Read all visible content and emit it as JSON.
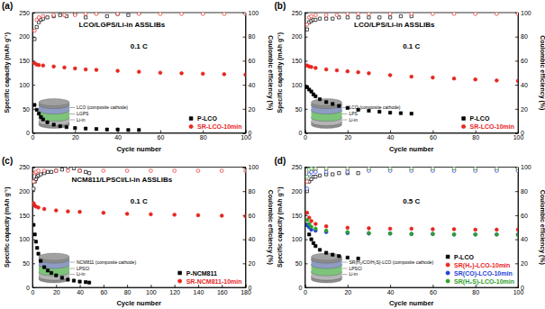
{
  "chart_data": [
    {
      "type": "scatter",
      "panel_label": "(a)",
      "title": "LCO/LGPS/Li-in ASSLIBs",
      "annotation": "0.1 C",
      "x_label": "Cycle number",
      "y_label": "Specific capacity (mAh g⁻¹)",
      "y2_label": "Coulombic efficiency (%)",
      "xlim": [
        0,
        100
      ],
      "xticks": [
        0,
        20,
        40,
        60,
        80,
        100
      ],
      "ylim": [
        0,
        250
      ],
      "yticks": [
        0,
        50,
        100,
        150,
        200,
        250
      ],
      "y2lim": [
        0,
        100
      ],
      "y2ticks": [
        0,
        20,
        40,
        60,
        80,
        100
      ],
      "legend": "bottom-right",
      "inset": {
        "labels": [
          "LCO (composite cathode)",
          "LGPS",
          "Li-in"
        ]
      },
      "series": [
        {
          "name": "P-LCO",
          "color": "#000000",
          "marker": "square",
          "x": [
            1,
            2,
            3,
            4,
            5,
            7,
            10,
            13,
            16,
            20,
            25,
            30,
            35,
            40,
            45,
            50
          ],
          "values": [
            58,
            48,
            40,
            33,
            28,
            22,
            17,
            14,
            12,
            10,
            9,
            8,
            7,
            7,
            6,
            6
          ]
        },
        {
          "name": "SR-LCO-10min",
          "color": "#e8251f",
          "marker": "circle",
          "x": [
            1,
            2,
            3,
            5,
            10,
            15,
            20,
            25,
            30,
            40,
            50,
            60,
            70,
            80,
            90,
            100
          ],
          "values": [
            145,
            142,
            141,
            140,
            138,
            136,
            134,
            132,
            131,
            129,
            127,
            125,
            124,
            123,
            122,
            121
          ]
        },
        {
          "color": "#000000",
          "marker": "square-open",
          "axis": "y2",
          "x": [
            1,
            2,
            3,
            4,
            5,
            7,
            10,
            13,
            16,
            20,
            25,
            30,
            35,
            40,
            45,
            50
          ],
          "values": [
            78,
            88,
            92,
            94,
            95,
            96,
            97,
            98,
            97,
            99,
            96,
            100,
            97,
            99,
            98,
            100
          ]
        },
        {
          "color": "#e8251f",
          "marker": "circle-open",
          "axis": "y2",
          "x": [
            1,
            2,
            3,
            5,
            10,
            15,
            20,
            25,
            30,
            40,
            50,
            60,
            70,
            80,
            90,
            100
          ],
          "values": [
            85,
            94,
            96,
            97,
            98,
            98,
            98,
            99,
            99,
            99,
            99,
            99,
            99,
            99,
            99,
            99
          ]
        }
      ]
    },
    {
      "type": "scatter",
      "panel_label": "(b)",
      "title": "LCO/LPS/Li-in ASSLIBs",
      "annotation": "0.1 C",
      "x_label": "Cycle number",
      "y_label": "Specific capacity (mAh g⁻¹)",
      "y2_label": "Coulombic efficiency (%)",
      "xlim": [
        0,
        100
      ],
      "xticks": [
        0,
        20,
        40,
        60,
        80,
        100
      ],
      "ylim": [
        0,
        250
      ],
      "yticks": [
        0,
        50,
        100,
        150,
        200,
        250
      ],
      "y2lim": [
        0,
        100
      ],
      "y2ticks": [
        0,
        20,
        40,
        60,
        80,
        100
      ],
      "legend": "bottom-right",
      "inset": {
        "labels": [
          "LCO (composite cathode)",
          "LPS",
          "Li-in"
        ]
      },
      "series": [
        {
          "name": "P-LCO",
          "color": "#000000",
          "marker": "square",
          "x": [
            1,
            2,
            3,
            4,
            5,
            7,
            10,
            13,
            16,
            20,
            25,
            30,
            35,
            40,
            45,
            50
          ],
          "values": [
            95,
            90,
            86,
            80,
            76,
            70,
            64,
            60,
            56,
            52,
            48,
            46,
            44,
            42,
            41,
            40
          ]
        },
        {
          "name": "SR-LCO-10min",
          "color": "#e8251f",
          "marker": "circle",
          "x": [
            1,
            2,
            3,
            5,
            10,
            15,
            20,
            25,
            30,
            40,
            50,
            60,
            70,
            80,
            90,
            100
          ],
          "values": [
            140,
            138,
            137,
            135,
            132,
            130,
            128,
            126,
            124,
            120,
            117,
            115,
            113,
            111,
            109,
            108
          ]
        },
        {
          "color": "#000000",
          "marker": "square-open",
          "axis": "y2",
          "x": [
            1,
            2,
            3,
            4,
            5,
            7,
            10,
            13,
            16,
            20,
            25,
            30,
            35,
            40,
            45,
            50
          ],
          "values": [
            86,
            92,
            93,
            94,
            94,
            95,
            95,
            95,
            96,
            96,
            96,
            96,
            96,
            96,
            97,
            97
          ]
        },
        {
          "color": "#e8251f",
          "marker": "circle-open",
          "axis": "y2",
          "x": [
            1,
            2,
            3,
            5,
            10,
            15,
            20,
            25,
            30,
            40,
            50,
            60,
            70,
            80,
            90,
            100
          ],
          "values": [
            90,
            96,
            97,
            98,
            98,
            98,
            99,
            99,
            99,
            99,
            99,
            99,
            99,
            99,
            99,
            99
          ]
        }
      ]
    },
    {
      "type": "scatter",
      "panel_label": "(c)",
      "title": "NCM811/LPSCl/Li-in ASSLIBs",
      "annotation": "0.1 C",
      "x_label": "Cycle number",
      "y_label": "Specific capacity (mAh g⁻¹)",
      "y2_label": "Coulombic efficiency (%)",
      "xlim": [
        0,
        180
      ],
      "xticks": [
        0,
        20,
        40,
        60,
        80,
        100,
        120,
        140,
        160,
        180
      ],
      "ylim": [
        0,
        250
      ],
      "yticks": [
        0,
        50,
        100,
        150,
        200,
        250
      ],
      "y2lim": [
        0,
        100
      ],
      "y2ticks": [
        0,
        20,
        40,
        60,
        80,
        100
      ],
      "legend": "bottom-right",
      "inset": {
        "labels": [
          "NCM811 (composite cathode)",
          "LPSCl",
          "Li-in"
        ]
      },
      "series": [
        {
          "name": "P-NCM811",
          "color": "#000000",
          "marker": "square",
          "x": [
            1,
            2,
            3,
            4,
            5,
            7,
            10,
            13,
            16,
            20,
            25,
            30,
            35,
            40,
            45,
            48
          ],
          "values": [
            130,
            110,
            95,
            82,
            70,
            55,
            42,
            35,
            30,
            25,
            20,
            16,
            14,
            12,
            11,
            10
          ]
        },
        {
          "name": "SR-NCM811-10min",
          "color": "#e8251f",
          "marker": "circle",
          "x": [
            1,
            2,
            3,
            5,
            10,
            20,
            30,
            40,
            60,
            80,
            100,
            120,
            140,
            160,
            180
          ],
          "values": [
            175,
            170,
            168,
            166,
            163,
            160,
            158,
            157,
            155,
            153,
            152,
            151,
            150,
            149,
            148
          ]
        },
        {
          "color": "#000000",
          "marker": "square-open",
          "axis": "y2",
          "x": [
            1,
            2,
            3,
            4,
            5,
            7,
            10,
            13,
            16,
            20,
            25,
            30,
            35,
            40,
            45,
            48
          ],
          "values": [
            82,
            88,
            90,
            92,
            93,
            94,
            95,
            96,
            96,
            97,
            98,
            100,
            99,
            97,
            96,
            95
          ]
        },
        {
          "color": "#e8251f",
          "marker": "circle-open",
          "axis": "y2",
          "x": [
            1,
            2,
            3,
            5,
            10,
            20,
            30,
            40,
            60,
            80,
            100,
            120,
            140,
            160,
            180
          ],
          "values": [
            88,
            95,
            96,
            97,
            97,
            97,
            97,
            97,
            97,
            97,
            97,
            97,
            97,
            97,
            97
          ]
        }
      ]
    },
    {
      "type": "scatter",
      "panel_label": "(d)",
      "annotation": "0.5 C",
      "x_label": "Cycle number",
      "y_label": "Specific capacity (mAh g⁻¹)",
      "y2_label": "Coulombic efficiency (%)",
      "xlim": [
        0,
        100
      ],
      "xticks": [
        0,
        20,
        40,
        60,
        80,
        100
      ],
      "ylim": [
        0,
        250
      ],
      "yticks": [
        0,
        50,
        100,
        150,
        200,
        250
      ],
      "y2lim": [
        0,
        100
      ],
      "y2ticks": [
        0,
        20,
        40,
        60,
        80,
        100
      ],
      "legend": "bottom-right",
      "inset": {
        "labels": [
          "SR(H₂/CO/H₂S)-LCO (composite cathode)",
          "LPSCl",
          "Li-in"
        ]
      },
      "series": [
        {
          "name": "P-LCO",
          "color": "#000000",
          "marker": "square",
          "x": [
            1,
            2,
            3,
            4,
            5,
            7,
            10,
            13,
            16,
            20,
            25
          ],
          "values": [
            130,
            110,
            100,
            92,
            86,
            78,
            72,
            68,
            65,
            62,
            60
          ]
        },
        {
          "name": "SR(H₂)-LCO-10min",
          "color": "#e8251f",
          "marker": "circle",
          "x": [
            1,
            2,
            3,
            5,
            10,
            20,
            30,
            40,
            50,
            60,
            70,
            80,
            90,
            100
          ],
          "values": [
            155,
            145,
            138,
            132,
            127,
            124,
            123,
            122,
            122,
            121,
            121,
            120,
            120,
            120
          ]
        },
        {
          "name": "SR(CO)-LCO-10min",
          "color": "#1f3fd6",
          "marker": "circle",
          "x": [
            1,
            2,
            3,
            5,
            10,
            20,
            30,
            40,
            50,
            60,
            70,
            80,
            90,
            100
          ],
          "values": [
            130,
            125,
            120,
            118,
            115,
            113,
            112,
            112,
            111,
            111,
            110,
            110,
            110,
            110
          ]
        },
        {
          "name": "SR(H₂S)-LCO-10min",
          "color": "#2ca02c",
          "marker": "circle",
          "x": [
            1,
            2,
            3,
            5,
            10,
            20,
            30,
            40,
            50,
            60,
            70,
            80,
            90,
            100
          ],
          "values": [
            140,
            132,
            126,
            122,
            118,
            115,
            113,
            112,
            111,
            111,
            110,
            110,
            110,
            109
          ]
        },
        {
          "color": "#000000",
          "marker": "square-open",
          "axis": "y2",
          "x": [
            1,
            2,
            3,
            4,
            5,
            7,
            10,
            13,
            16,
            20,
            25
          ],
          "values": [
            80,
            88,
            90,
            92,
            92,
            93,
            94,
            94,
            95,
            95,
            95
          ]
        },
        {
          "color": "#e8251f",
          "marker": "circle-open",
          "axis": "y2",
          "x": [
            1,
            2,
            3,
            5,
            10,
            20,
            30,
            40,
            50,
            60,
            70,
            80,
            90,
            100
          ],
          "values": [
            88,
            96,
            97,
            98,
            98,
            98,
            98,
            98,
            98,
            98,
            98,
            98,
            98,
            98
          ]
        },
        {
          "color": "#1f3fd6",
          "marker": "circle-open",
          "axis": "y2",
          "x": [
            1,
            2,
            3,
            5,
            10,
            20,
            30,
            40,
            50,
            60,
            70,
            80,
            90,
            100
          ],
          "values": [
            82,
            94,
            96,
            96,
            96,
            96,
            97,
            97,
            97,
            97,
            97,
            97,
            97,
            97
          ]
        },
        {
          "color": "#2ca02c",
          "marker": "circle-open",
          "axis": "y2",
          "x": [
            1,
            2,
            3,
            5,
            10,
            20,
            30,
            40,
            50,
            60,
            70,
            80,
            90,
            100
          ],
          "values": [
            92,
            98,
            99,
            99,
            99,
            99,
            99,
            99,
            99,
            99,
            99,
            99,
            99,
            99
          ]
        }
      ]
    }
  ]
}
